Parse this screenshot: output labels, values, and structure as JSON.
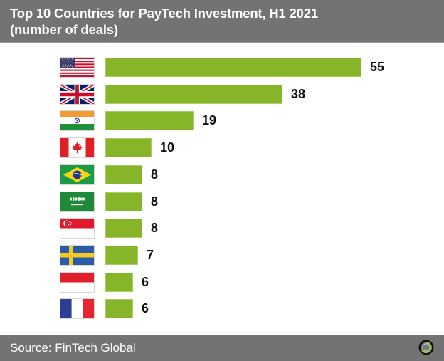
{
  "header": {
    "title_line1": "Top 10 Countries for PayTech Investment, H1 2021",
    "title_line2": "(number of deals)"
  },
  "footer": {
    "source": "Source: FinTech Global",
    "logo_icon": "fintech-global-logo-icon"
  },
  "colors": {
    "bar": "#86b52a",
    "header_bg": "#737373",
    "footer_bg": "#737373",
    "text_light": "#ffffff",
    "value_text": "#111111"
  },
  "chart_data": {
    "type": "bar",
    "orientation": "horizontal",
    "title": "Top 10 Countries for PayTech Investment, H1 2021 (number of deals)",
    "xlabel": "",
    "ylabel": "",
    "categories": [
      "United States",
      "United Kingdom",
      "India",
      "Canada",
      "Brazil",
      "Saudi Arabia",
      "Singapore",
      "Sweden",
      "Indonesia",
      "France"
    ],
    "category_display": "flag icons",
    "values": [
      55,
      38,
      19,
      10,
      8,
      8,
      8,
      7,
      6,
      6
    ],
    "value_labels": [
      "55",
      "38",
      "19",
      "10",
      "8",
      "8",
      "8",
      "7",
      "6",
      "6"
    ],
    "xlim": [
      0,
      55
    ],
    "grid": false,
    "legend": null,
    "source": "Source: FinTech Global"
  },
  "rows": [
    {
      "country": "United States",
      "flag": "us-flag-icon",
      "value": 55,
      "label": "55"
    },
    {
      "country": "United Kingdom",
      "flag": "uk-flag-icon",
      "value": 38,
      "label": "38"
    },
    {
      "country": "India",
      "flag": "india-flag-icon",
      "value": 19,
      "label": "19"
    },
    {
      "country": "Canada",
      "flag": "canada-flag-icon",
      "value": 10,
      "label": "10"
    },
    {
      "country": "Brazil",
      "flag": "brazil-flag-icon",
      "value": 8,
      "label": "8"
    },
    {
      "country": "Saudi Arabia",
      "flag": "saudi-arabia-flag-icon",
      "value": 8,
      "label": "8"
    },
    {
      "country": "Singapore",
      "flag": "singapore-flag-icon",
      "value": 8,
      "label": "8"
    },
    {
      "country": "Sweden",
      "flag": "sweden-flag-icon",
      "value": 7,
      "label": "7"
    },
    {
      "country": "Indonesia",
      "flag": "indonesia-flag-icon",
      "value": 6,
      "label": "6"
    },
    {
      "country": "France",
      "flag": "france-flag-icon",
      "value": 6,
      "label": "6"
    }
  ]
}
